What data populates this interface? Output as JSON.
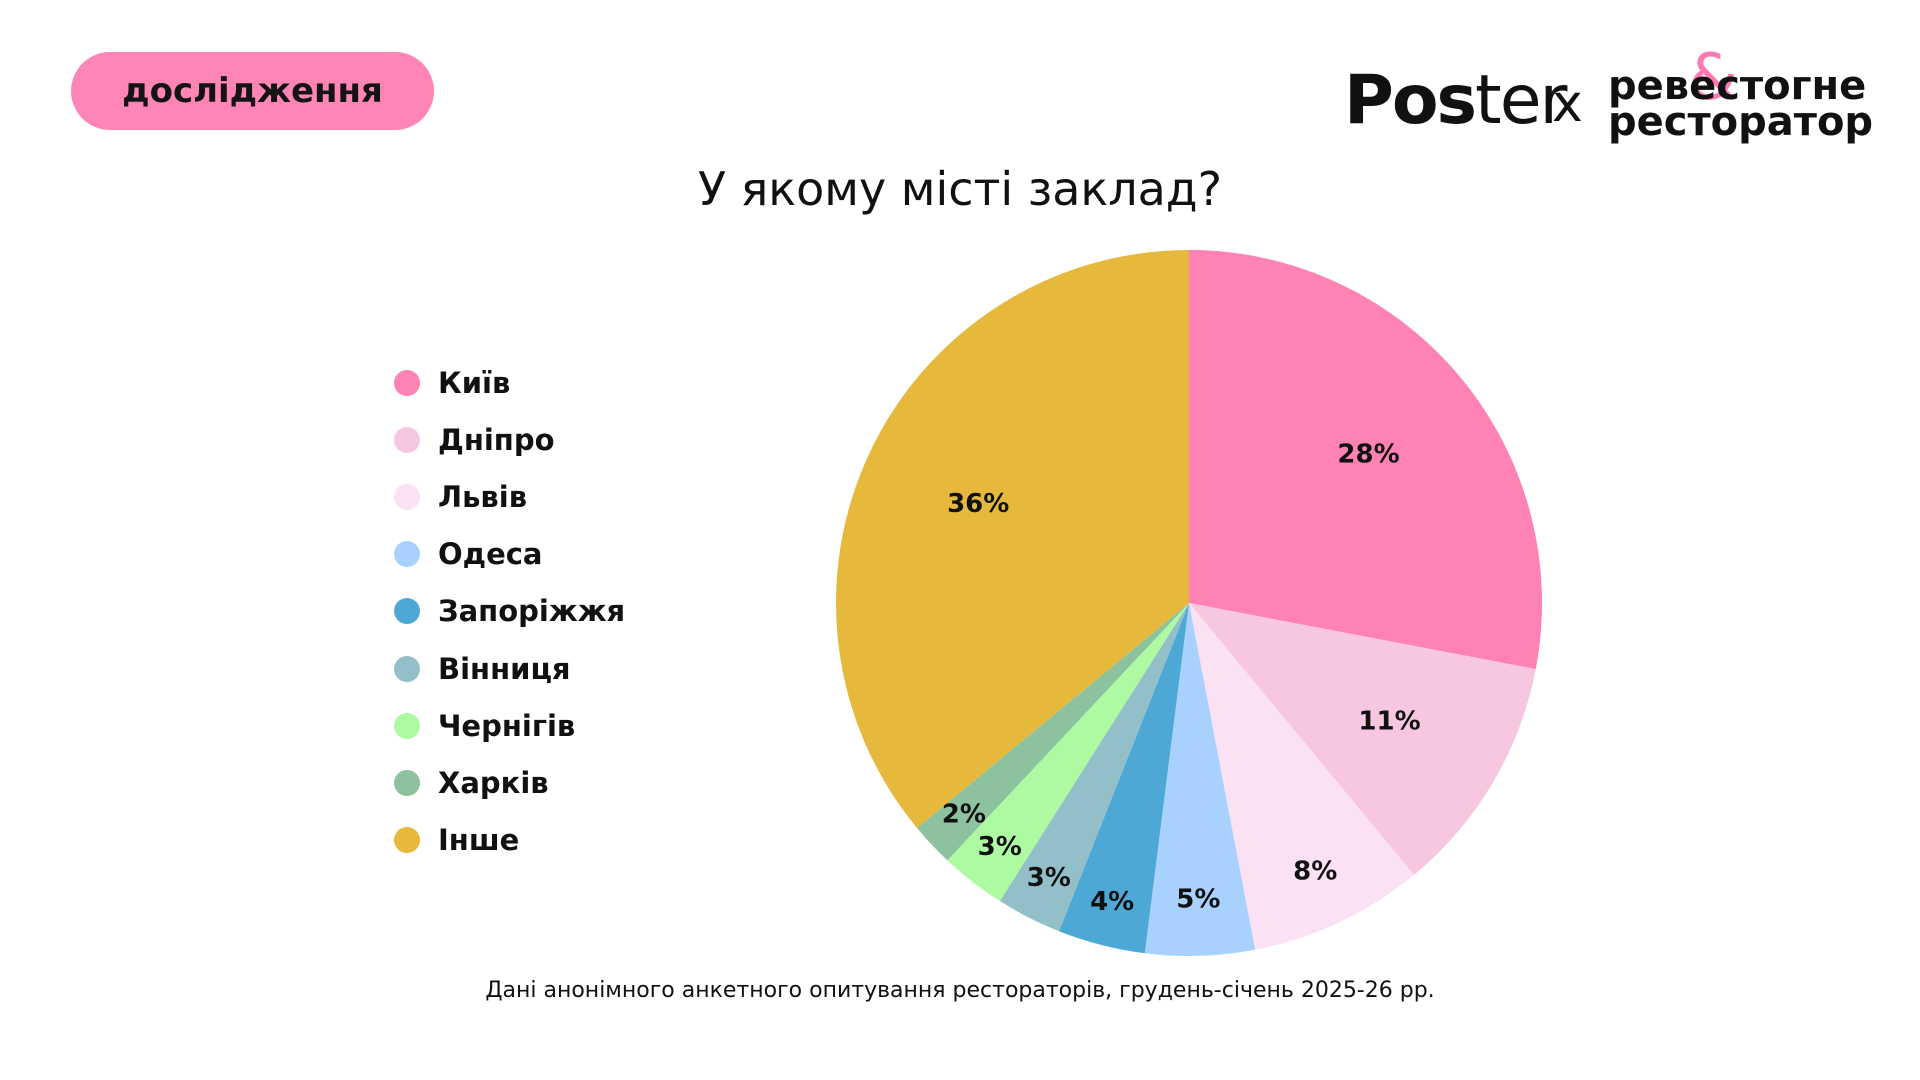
{
  "header": {
    "tag_label": "дослідження",
    "logo_poster_bold": "Pos",
    "logo_poster_light": "ter",
    "logo_x": "x",
    "logo_rev_line1": "ревестогне",
    "logo_rev_line2": "ресторатор",
    "logo_rev_amp": "&"
  },
  "colors": {
    "tag_bg": "#ff85b7",
    "text": "#111111"
  },
  "chart_data": {
    "type": "pie",
    "title": "У якому місті заклад?",
    "legend_position": "left",
    "slices": [
      {
        "label": "Київ",
        "value": 28,
        "display": "28%",
        "color": "#ff82b4"
      },
      {
        "label": "Дніпро",
        "value": 11,
        "display": "11%",
        "color": "#f7c7e1"
      },
      {
        "label": "Львів",
        "value": 8,
        "display": "8%",
        "color": "#fae1f3"
      },
      {
        "label": "Одеса",
        "value": 5,
        "display": "5%",
        "color": "#a8d1fd"
      },
      {
        "label": "Запоріжжя",
        "value": 4,
        "display": "4%",
        "color": "#4ea8d6"
      },
      {
        "label": "Вінниця",
        "value": 3,
        "display": "3%",
        "color": "#93bfc9"
      },
      {
        "label": "Чернігів",
        "value": 3,
        "display": "3%",
        "color": "#adfaa3"
      },
      {
        "label": "Харків",
        "value": 2,
        "display": "2%",
        "color": "#8cc39e"
      },
      {
        "label": "Інше",
        "value": 36,
        "display": "36%",
        "color": "#e6b93c"
      }
    ]
  },
  "footnote": "Дані анонімного анкетного опитування рестораторів, грудень-січень 2025-26 рр."
}
